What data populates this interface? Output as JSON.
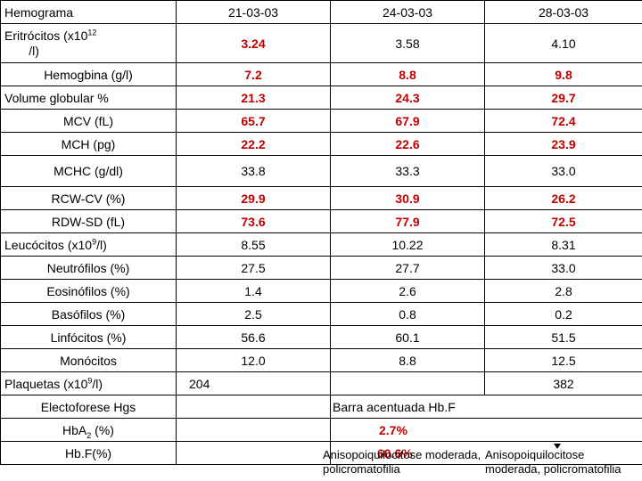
{
  "table": {
    "header": [
      "Hemograma",
      "21-03-03",
      "24-03-03",
      "28-03-03"
    ],
    "eritrocitos": {
      "label_main": "Eritrócitos (x10",
      "label_sup": "12",
      "label_tail": "/l)",
      "values": [
        "3.24",
        "3.58",
        "4.10"
      ]
    },
    "hemoglobina": {
      "label": "Hemogbina (g/l)",
      "values": [
        "7.2",
        "8.8",
        "9.8"
      ]
    },
    "volume": {
      "label": "Volume globular %",
      "values": [
        "21.3",
        "24.3",
        "29.7"
      ]
    },
    "mcv": {
      "label": "MCV (fL)",
      "values": [
        "65.7",
        "67.9",
        "72.4"
      ]
    },
    "mch": {
      "label": "MCH (pg)",
      "values": [
        "22.2",
        "22.6",
        "23.9"
      ]
    },
    "mchc": {
      "label": "MCHC (g/dl)",
      "values": [
        "33.8",
        "33.3",
        "33.0"
      ]
    },
    "rcwcv": {
      "label": "RCW-CV (%)",
      "values": [
        "29.9",
        "30.9",
        "26.2"
      ]
    },
    "rdwsd": {
      "label": "RDW-SD (fL)",
      "values": [
        "73.6",
        "77.9",
        "72.5"
      ]
    },
    "leucocitos": {
      "label_main": "Leucócitos (x10",
      "label_sup": "9",
      "label_tail": "/l)",
      "values": [
        "8.55",
        "10.22",
        "8.31"
      ]
    },
    "neutrofilos": {
      "label": "Neutrófilos (%)",
      "values": [
        "27.5",
        "27.7",
        "33.0"
      ]
    },
    "eosinofilos": {
      "label": "Eosinófilos  (%)",
      "values": [
        "1.4",
        "2.6",
        "2.8"
      ]
    },
    "basofilos": {
      "label": "Basófilos (%)",
      "values": [
        "2.5",
        "0.8",
        "0.2"
      ]
    },
    "linfocitos": {
      "label": "Linfócitos  (%)",
      "values": [
        "56.6",
        "60.1",
        "51.5"
      ]
    },
    "monocitos": {
      "label": "Monócitos",
      "values": [
        "12.0",
        "8.8",
        "12.5"
      ]
    },
    "plaquetas": {
      "label_main": "Plaquetas (x10",
      "label_sup": "9",
      "label_tail": "/l)",
      "values": [
        "204",
        "",
        "382"
      ]
    },
    "electroforese": {
      "label": "Electoforese Hgs",
      "result": "Barra acentuada Hb.F"
    },
    "hba2": {
      "label_main": "HbA",
      "label_sub": "2",
      "label_tail": " (%)",
      "result": "2.7%"
    },
    "hbf": {
      "label": "Hb.F(%)",
      "result": "60.6%"
    }
  },
  "notes": {
    "note1_line1": "Anisopoiquilocitose moderada,",
    "note1_line2": "policromatofilia",
    "note2_line1": "Anisopoiquilocitose",
    "note2_line2": "moderada, policromatofilia"
  },
  "colors": {
    "highlight": "#c00000",
    "text": "#000000",
    "border": "#000000"
  }
}
